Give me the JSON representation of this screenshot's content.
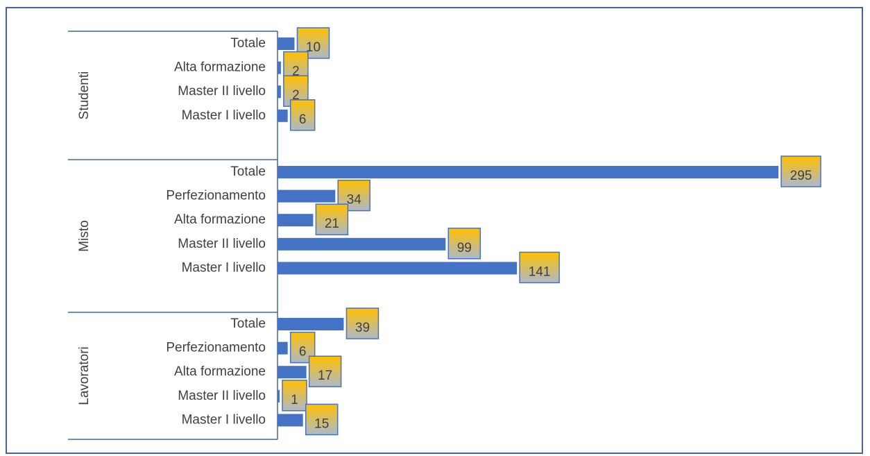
{
  "chart_data": {
    "type": "bar",
    "orientation": "horizontal",
    "xlim": [
      0,
      295
    ],
    "bar_color": "#4472c4",
    "label_box_top_color": "#ffc000",
    "label_box_bottom_color": "#adb9ca",
    "label_box_border_color": "#4472c4",
    "groups": [
      {
        "name": "Studenti",
        "rows": [
          {
            "label": "Totale",
            "value": 10
          },
          {
            "label": "Alta formazione",
            "value": 2
          },
          {
            "label": "Master II livello",
            "value": 2
          },
          {
            "label": "Master I livello",
            "value": 6
          }
        ]
      },
      {
        "name": "Misto",
        "rows": [
          {
            "label": "Totale",
            "value": 295
          },
          {
            "label": "Perfezionamento",
            "value": 34
          },
          {
            "label": "Alta formazione",
            "value": 21
          },
          {
            "label": "Master II livello",
            "value": 99
          },
          {
            "label": "Master I livello",
            "value": 141
          }
        ]
      },
      {
        "name": "Lavoratori",
        "rows": [
          {
            "label": "Totale",
            "value": 39
          },
          {
            "label": "Perfezionamento",
            "value": 6
          },
          {
            "label": "Alta formazione",
            "value": 17
          },
          {
            "label": "Master II livello",
            "value": 1
          },
          {
            "label": "Master I livello",
            "value": 15
          }
        ]
      }
    ]
  }
}
